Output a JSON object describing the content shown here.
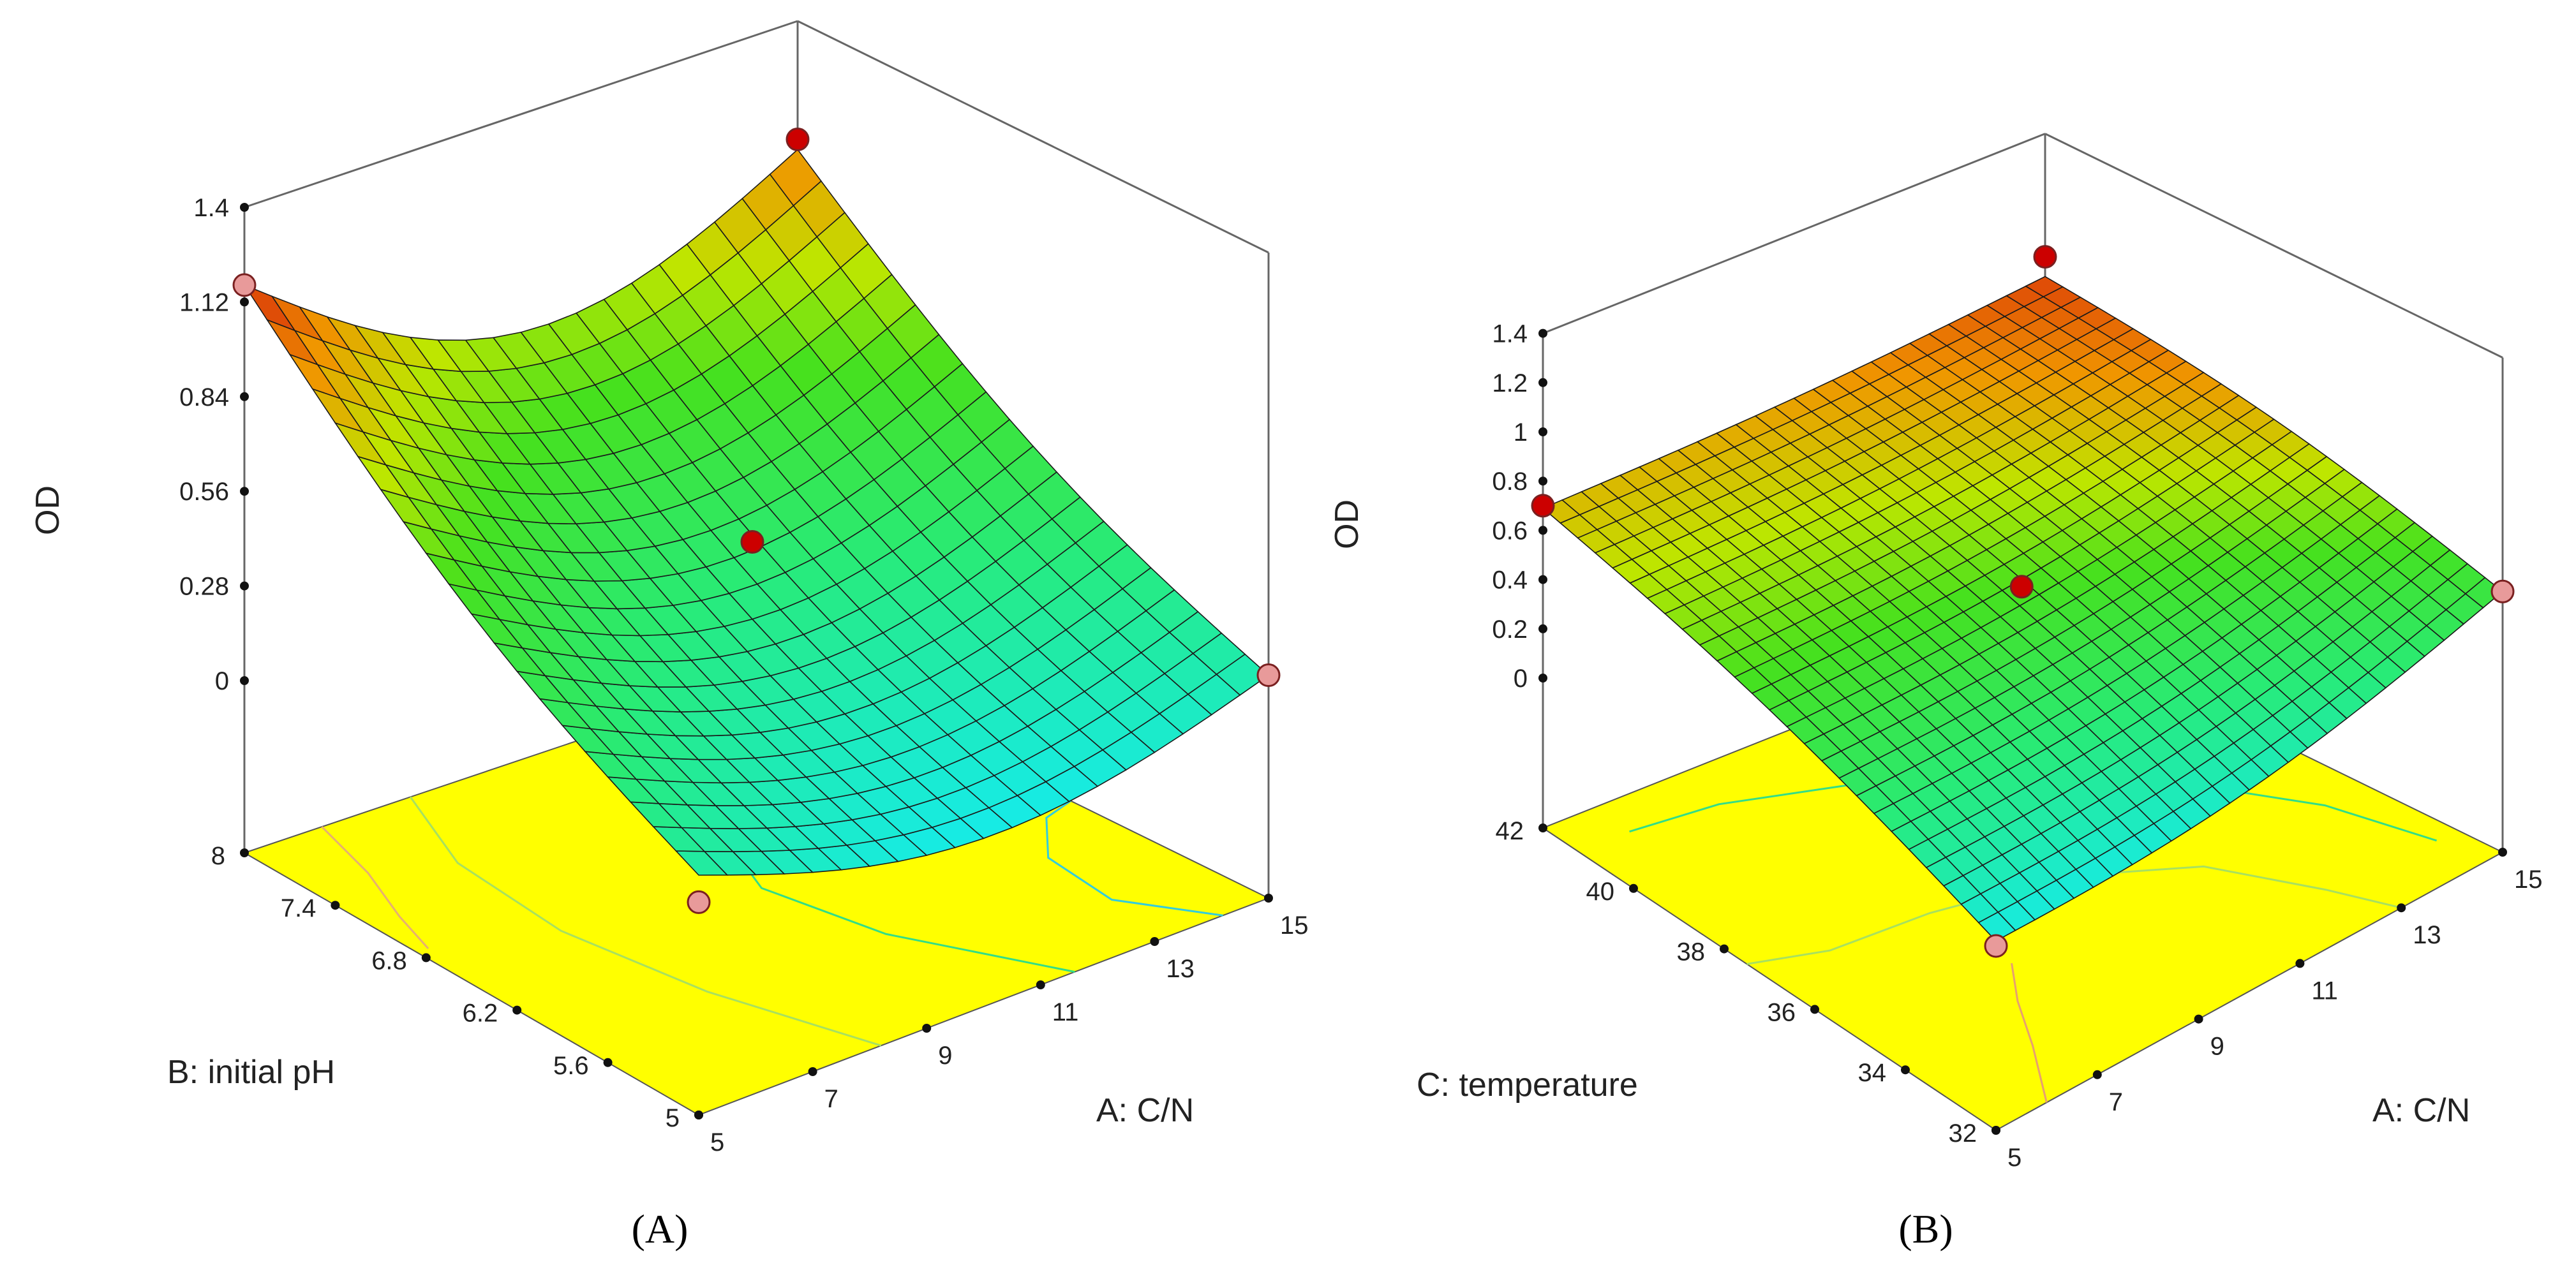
{
  "chart_data": [
    {
      "type": "surface",
      "panel_label": "(A)",
      "title": "",
      "zlabel": "OD",
      "xlabel": "A: C/N",
      "ylabel": "B: initial pH",
      "x_ticks": [
        "5",
        "7",
        "9",
        "11",
        "13",
        "15"
      ],
      "y_ticks": [
        "5",
        "5.6",
        "6.2",
        "6.8",
        "7.4",
        "8"
      ],
      "z_ticks": [
        "0",
        "0.28",
        "0.56",
        "0.84",
        "1.12",
        "1.4"
      ],
      "xlim": [
        5,
        15
      ],
      "ylim": [
        5,
        8
      ],
      "zlim": [
        0,
        1.4
      ],
      "corner_values": {
        "A_low_B_low": 0.2,
        "A_high_B_low": 0.15,
        "A_low_B_high": 1.17,
        "A_high_B_high": 1.02
      },
      "design_points": [
        {
          "A": 5,
          "B": 5,
          "OD": 0.12,
          "kind": "below"
        },
        {
          "A": 15,
          "B": 5,
          "OD": 0.15,
          "kind": "below"
        },
        {
          "A": 5,
          "B": 8,
          "OD": 1.17,
          "kind": "below"
        },
        {
          "A": 15,
          "B": 8,
          "OD": 1.05,
          "kind": "above"
        },
        {
          "A": 10,
          "B": 6.5,
          "OD": 0.5,
          "kind": "above"
        }
      ],
      "floor_color": "#ffff00"
    },
    {
      "type": "surface",
      "panel_label": "(B)",
      "title": "",
      "zlabel": "OD",
      "xlabel": "A: C/N",
      "ylabel": "C: temperature",
      "x_ticks": [
        "5",
        "7",
        "9",
        "11",
        "13",
        "15"
      ],
      "y_ticks": [
        "32",
        "34",
        "36",
        "38",
        "40",
        "42"
      ],
      "z_ticks": [
        "0",
        "0.2",
        "0.4",
        "0.6",
        "0.8",
        "1",
        "1.2",
        "1.4"
      ],
      "xlim": [
        5,
        15
      ],
      "ylim": [
        32,
        42
      ],
      "zlim": [
        0,
        1.4
      ],
      "corner_values": {
        "A_low_C_low": 0.16,
        "A_high_C_low": 0.45,
        "A_low_C_high": 0.69,
        "A_high_C_high": 0.82
      },
      "design_points": [
        {
          "A": 5,
          "C": 32,
          "OD": 0.14,
          "kind": "below"
        },
        {
          "A": 15,
          "C": 32,
          "OD": 0.45,
          "kind": "below"
        },
        {
          "A": 5,
          "C": 42,
          "OD": 0.7,
          "kind": "above"
        },
        {
          "A": 15,
          "C": 42,
          "OD": 0.9,
          "kind": "above"
        },
        {
          "A": 10,
          "C": 37,
          "OD": 0.5,
          "kind": "above"
        }
      ],
      "floor_color": "#ffff00"
    }
  ]
}
